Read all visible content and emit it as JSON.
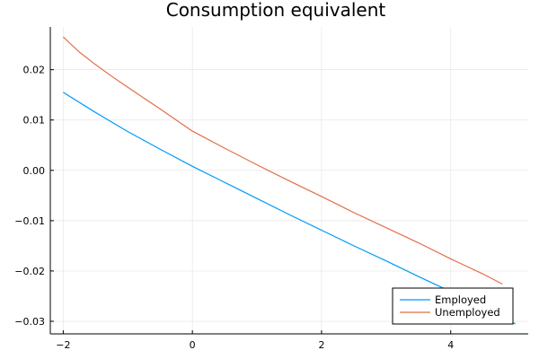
{
  "chart_data": {
    "type": "line",
    "title": "Consumption equivalent",
    "xlabel": "",
    "ylabel": "",
    "xlim": [
      -2.2,
      5.2
    ],
    "ylim": [
      -0.0325,
      0.0285
    ],
    "xticks": [
      -2,
      0,
      2,
      4
    ],
    "xtick_labels": [
      "−2",
      "0",
      "2",
      "4"
    ],
    "yticks": [
      -0.03,
      -0.02,
      -0.01,
      0.0,
      0.01,
      0.02
    ],
    "ytick_labels": [
      "−0.03",
      "−0.02",
      "−0.01",
      "0.00",
      "0.01",
      "0.02"
    ],
    "grid": true,
    "legend_position": "bottom-right",
    "series": [
      {
        "name": "Employed",
        "color": "#009af9",
        "x": [
          -2.0,
          -1.5,
          -1.0,
          -0.5,
          0.0,
          0.5,
          1.0,
          1.5,
          2.0,
          2.5,
          3.0,
          3.5,
          4.0,
          4.5,
          5.0
        ],
        "y": [
          0.0155,
          0.0115,
          0.0077,
          0.0042,
          0.0008,
          -0.0024,
          -0.0056,
          -0.0088,
          -0.0119,
          -0.015,
          -0.018,
          -0.0211,
          -0.0241,
          -0.0272,
          -0.0305
        ]
      },
      {
        "name": "Unemployed",
        "color": "#e26f46",
        "x": [
          -2.0,
          -1.75,
          -1.5,
          -1.25,
          -1.0,
          -0.5,
          0.0,
          0.5,
          1.0,
          1.5,
          2.0,
          2.5,
          3.0,
          3.5,
          4.0,
          4.5,
          4.8
        ],
        "y": [
          0.0265,
          0.0235,
          0.021,
          0.0187,
          0.0165,
          0.0122,
          0.0078,
          0.0044,
          0.0011,
          -0.0021,
          -0.0052,
          -0.0084,
          -0.0114,
          -0.0144,
          -0.0176,
          -0.0206,
          -0.0226
        ]
      }
    ]
  }
}
